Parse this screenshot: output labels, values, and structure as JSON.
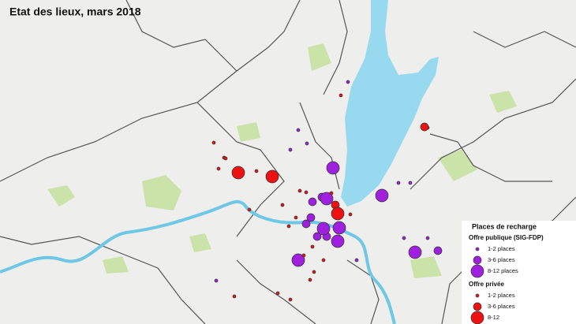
{
  "header": {
    "title": "Etat des lieux, mars 2018"
  },
  "legend": {
    "title": "Places de recharge",
    "groups": [
      {
        "title": "Offre publique (SIG-FDP)",
        "items": [
          "1-2 places",
          "3-6 places",
          "8-12 places"
        ]
      },
      {
        "title": "Offre privée",
        "items": [
          "1-2 places",
          "3-6 places",
          "8-12"
        ]
      }
    ]
  }
}
